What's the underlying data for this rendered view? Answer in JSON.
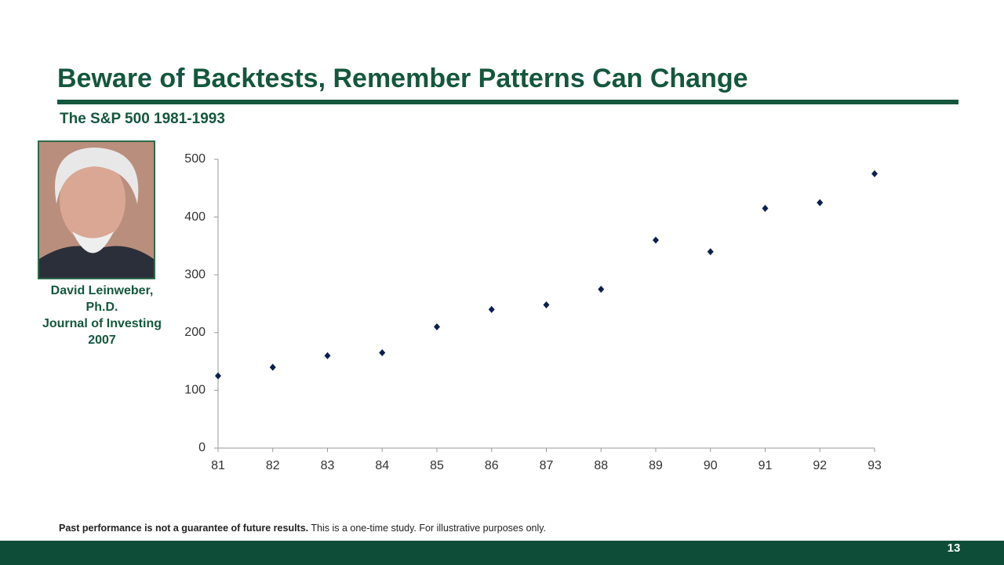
{
  "slide": {
    "title": "Beware of Backtests, Remember Patterns Can Change",
    "caption": [
      "David Leinweber,",
      "Ph.D.",
      "Journal of Investing",
      "2007"
    ],
    "footnote_bold": "Past performance is not a guarantee of future results.",
    "footnote": "This is a one-time study.  For illustrative purposes only.",
    "page": "13"
  },
  "chart_data": {
    "type": "scatter",
    "title": "The S&P 500 1981-1993",
    "x": [
      81,
      82,
      83,
      84,
      85,
      86,
      87,
      88,
      89,
      90,
      91,
      92,
      93
    ],
    "values": [
      125,
      140,
      160,
      165,
      210,
      240,
      248,
      275,
      360,
      340,
      415,
      425,
      475
    ],
    "color": "#0d1f4f",
    "xlim": [
      81,
      93
    ],
    "xticks": [
      81,
      82,
      83,
      84,
      85,
      86,
      87,
      88,
      89,
      90,
      91,
      92,
      93
    ],
    "ylim": [
      0,
      500
    ],
    "yticks": [
      0,
      100,
      200,
      300,
      400,
      500
    ],
    "grid": false
  }
}
